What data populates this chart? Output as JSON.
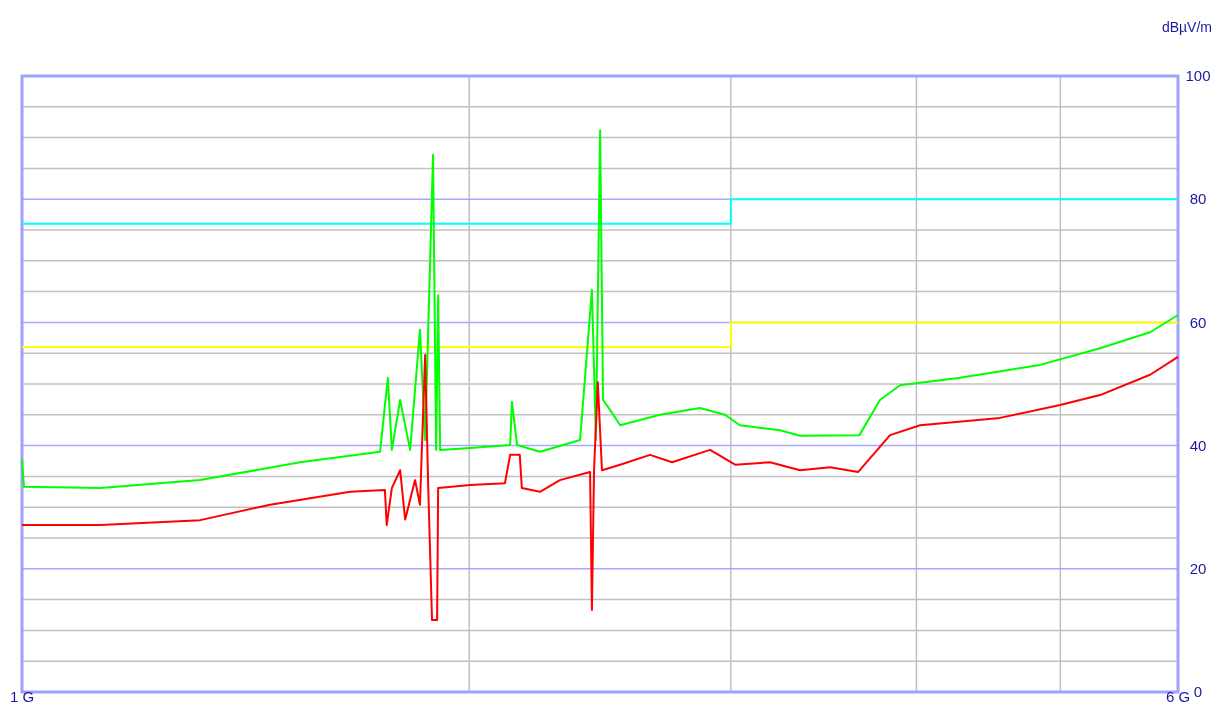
{
  "chart_data": {
    "type": "line",
    "ylabel": "dBµV/m",
    "log": "x",
    "grid": true,
    "line_style": "solid",
    "xlim": [
      1,
      6
    ],
    "ylim": [
      0,
      100
    ],
    "xticks": [
      {
        "value": 1,
        "label": "1 G"
      },
      {
        "value": 2,
        "label": null
      },
      {
        "value": 3,
        "label": null
      },
      {
        "value": 4,
        "label": null
      },
      {
        "value": 5,
        "label": null
      },
      {
        "value": 6,
        "label": "6 G"
      }
    ],
    "yticks": [
      0,
      {
        "value": 5,
        "label": null
      },
      {
        "value": 10,
        "label": null
      },
      {
        "value": 15,
        "label": null
      },
      20,
      {
        "value": 25,
        "label": null
      },
      {
        "value": 30,
        "label": null
      },
      {
        "value": 35,
        "label": null
      },
      40,
      {
        "value": 45,
        "label": null
      },
      {
        "value": 50,
        "label": null
      },
      {
        "value": 55,
        "label": null
      },
      60,
      {
        "value": 65,
        "label": null
      },
      {
        "value": 70,
        "label": null
      },
      {
        "value": 75,
        "label": null
      },
      80,
      {
        "value": 85,
        "label": null
      },
      {
        "value": 90,
        "label": null
      },
      {
        "value": 95,
        "label": null
      },
      100
    ],
    "series": [
      {
        "color": "#00ffff",
        "x": [
          1,
          3,
          3,
          6
        ],
        "values": [
          76,
          76,
          80,
          80
        ]
      },
      {
        "color": "#ffff00",
        "x": [
          1,
          3,
          3,
          6
        ],
        "values": [
          56,
          56,
          60,
          60
        ]
      },
      {
        "color": "#00ff00",
        "x": [
          1,
          1.003,
          1.129,
          1.318,
          1.539,
          1.742,
          1.763,
          1.774,
          1.797,
          1.825,
          1.853,
          1.868,
          1.891,
          1.9,
          1.906,
          1.912,
          2.003,
          2.131,
          2.137,
          2.154,
          2.232,
          2.375,
          2.419,
          2.434,
          2.45,
          2.461,
          2.488,
          2.527,
          2.688,
          2.86,
          2.973,
          3.043,
          3.238,
          3.34,
          3.662,
          3.78,
          3.9,
          4.28,
          4.845,
          5.317,
          5.746,
          6
        ],
        "values": [
          37.7,
          33.3,
          33.1,
          34.4,
          37.3,
          39,
          51,
          39.3,
          47.4,
          39.3,
          58.8,
          40.9,
          87.2,
          39.3,
          64.4,
          39.3,
          39.6,
          40.1,
          47.1,
          40.1,
          39,
          40.9,
          65.3,
          40.9,
          91.2,
          47.4,
          45.8,
          43.3,
          45,
          46.1,
          45,
          43.3,
          42.5,
          41.6,
          41.7,
          47.4,
          49.8,
          51,
          53.1,
          55.8,
          58.4,
          61.2
        ]
      },
      {
        "color": "#ff0000",
        "x": [
          1,
          1.129,
          1.318,
          1.469,
          1.663,
          1.755,
          1.76,
          1.774,
          1.797,
          1.811,
          1.839,
          1.853,
          1.868,
          1.877,
          1.888,
          1.903,
          1.906,
          2.003,
          2.114,
          2.131,
          2.163,
          2.17,
          2.232,
          2.302,
          2.412,
          2.419,
          2.427,
          2.441,
          2.457,
          2.527,
          2.647,
          2.739,
          2.905,
          3.02,
          3.188,
          3.34,
          3.499,
          3.654,
          3.84,
          4.023,
          4.553,
          4.998,
          5.317,
          5.746,
          6
        ],
        "values": [
          27.1,
          27.1,
          27.9,
          30.4,
          32.5,
          32.8,
          27.1,
          33.1,
          36,
          28,
          34.4,
          30.4,
          54.7,
          33.1,
          11.7,
          11.7,
          33.1,
          33.6,
          33.9,
          38.5,
          38.5,
          33.1,
          32.5,
          34.4,
          35.7,
          13.3,
          36,
          50.3,
          36,
          36.9,
          38.5,
          37.3,
          39.3,
          36.9,
          37.3,
          36,
          36.5,
          35.7,
          41.7,
          43.3,
          44.5,
          46.6,
          48.2,
          51.5,
          54.4
        ]
      }
    ]
  }
}
